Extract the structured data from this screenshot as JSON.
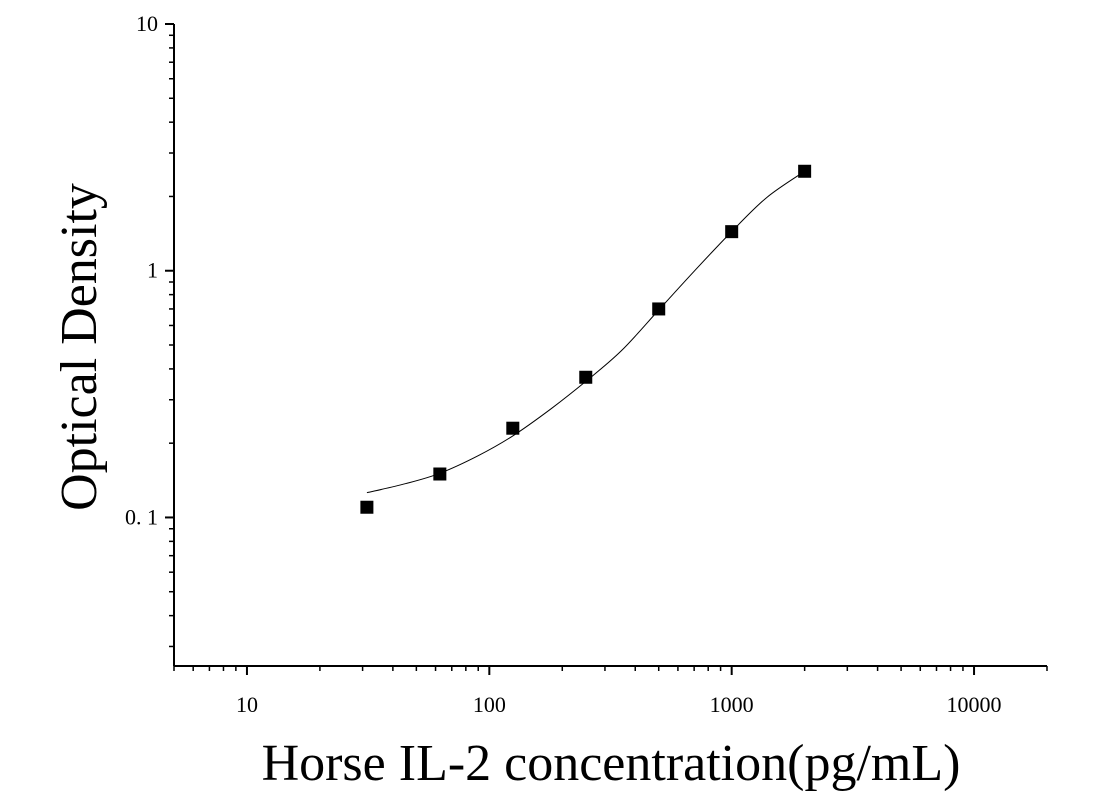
{
  "chart_data": {
    "type": "scatter",
    "title": "",
    "xlabel": "Horse IL-2 concentration(pg/mL)",
    "ylabel": "Optical Density",
    "x_scale": "log",
    "y_scale": "log",
    "xlim": [
      5,
      20000
    ],
    "ylim": [
      0.025,
      10
    ],
    "x_ticks": [
      {
        "value": 10,
        "label": "10"
      },
      {
        "value": 100,
        "label": "100"
      },
      {
        "value": 1000,
        "label": "1000"
      },
      {
        "value": 10000,
        "label": "10000"
      }
    ],
    "y_ticks": [
      {
        "value": 0.1,
        "label": "0. 1"
      },
      {
        "value": 1,
        "label": "1"
      },
      {
        "value": 10,
        "label": "10"
      }
    ],
    "grid": false,
    "series": [
      {
        "marker": "square",
        "color": "#000000",
        "points": [
          {
            "x": 31.25,
            "y": 0.11
          },
          {
            "x": 62.5,
            "y": 0.15
          },
          {
            "x": 125,
            "y": 0.23
          },
          {
            "x": 250,
            "y": 0.37
          },
          {
            "x": 500,
            "y": 0.7
          },
          {
            "x": 1000,
            "y": 1.44
          },
          {
            "x": 2000,
            "y": 2.53
          }
        ]
      }
    ],
    "fit_curve": {
      "color": "#000000",
      "points": [
        {
          "x": 31.25,
          "y": 0.126
        },
        {
          "x": 45,
          "y": 0.137
        },
        {
          "x": 62.5,
          "y": 0.151
        },
        {
          "x": 90,
          "y": 0.178
        },
        {
          "x": 125,
          "y": 0.214
        },
        {
          "x": 180,
          "y": 0.276
        },
        {
          "x": 250,
          "y": 0.356
        },
        {
          "x": 350,
          "y": 0.473
        },
        {
          "x": 500,
          "y": 0.693
        },
        {
          "x": 700,
          "y": 0.995
        },
        {
          "x": 1000,
          "y": 1.441
        },
        {
          "x": 1400,
          "y": 1.986
        },
        {
          "x": 2000,
          "y": 2.53
        }
      ]
    }
  }
}
